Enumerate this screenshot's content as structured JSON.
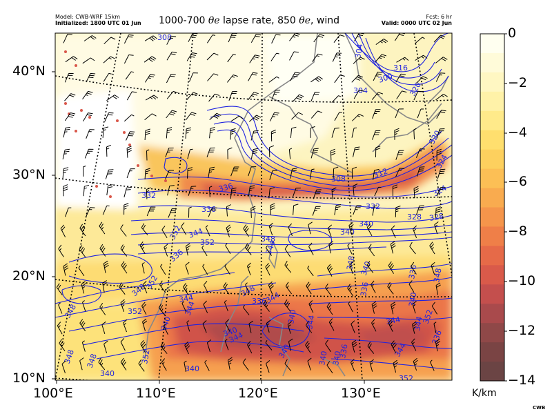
{
  "header": {
    "model": "Model: CWB-WRF 15km",
    "initialized": "Initialized: 1800 UTC 01 Jun",
    "fcst": "Fcst: 6 hr",
    "valid": "Valid: 0000 UTC 02 Jun",
    "title_prefix": "1000-700",
    "theta_e_1": "θe",
    "title_mid": "lapse rate, 850",
    "theta_e_2": "θe",
    "title_suffix": ", wind"
  },
  "axes": {
    "lat_labels": [
      "40°N",
      "30°N",
      "20°N",
      "10°N"
    ],
    "lon_labels": [
      "100°E",
      "110°E",
      "120°E",
      "130°E"
    ]
  },
  "colorbar": {
    "unit": "K/km",
    "tick_labels": [
      "0",
      "−2",
      "−4",
      "−6",
      "−8",
      "−10",
      "−12",
      "−14"
    ],
    "range": [
      -14,
      0
    ],
    "colors": [
      "#fffff0",
      "#fffbd9",
      "#fff7c2",
      "#fff2a8",
      "#ffea8a",
      "#ffdf6e",
      "#fdd05e",
      "#fcbf55",
      "#f9ab4f",
      "#f5954b",
      "#ef7f48",
      "#e66a48",
      "#d95a4a",
      "#c44f4d",
      "#a94a4c",
      "#8f4848",
      "#7a4444",
      "#6b4444"
    ]
  },
  "contours": {
    "color": "#1f22e0",
    "labels": [
      "308",
      "304",
      "300",
      "304",
      "316",
      "320",
      "308",
      "312",
      "320",
      "324",
      "324",
      "328",
      "332",
      "336",
      "332",
      "340",
      "328",
      "340",
      "344",
      "352",
      "348",
      "336",
      "352",
      "344",
      "348",
      "336",
      "352",
      "348",
      "344",
      "340",
      "344",
      "348",
      "340",
      "336",
      "344",
      "340",
      "340",
      "336",
      "340",
      "336",
      "348",
      "344",
      "352",
      "344",
      "352",
      "352",
      "348",
      "340",
      "336",
      "344",
      "340",
      "348",
      "340",
      "344",
      "336",
      "340",
      "344",
      "348",
      "352",
      "340"
    ]
  },
  "credit": "CWB"
}
